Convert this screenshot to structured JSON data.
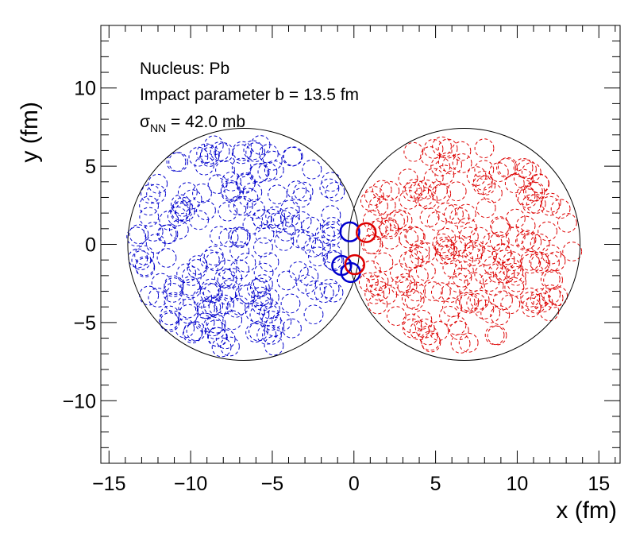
{
  "chart_data": {
    "type": "scatter",
    "xlabel": "x (fm)",
    "ylabel": "y (fm)",
    "xlim": [
      -15.5,
      16.3
    ],
    "ylim": [
      -14.0,
      14.0
    ],
    "xticks": [
      -15,
      -10,
      -5,
      0,
      5,
      10,
      15
    ],
    "xtick_labels": [
      "−15",
      "−10",
      "−5",
      "0",
      "5",
      "10",
      "15"
    ],
    "yticks": [
      -10,
      -5,
      0,
      5,
      10
    ],
    "ytick_labels": [
      "−10",
      "−5",
      "0",
      "5",
      "10"
    ],
    "annotations": {
      "nucleus": "Nucleus: Pb",
      "impact": "Impact parameter b = 13.5 fm",
      "sigma_symbol": "σ",
      "sigma_sub": "NN",
      "sigma_value": " = 42.0 mb"
    },
    "nuclei": [
      {
        "cx": -6.75,
        "cy": 0,
        "r": 7.1,
        "color": "#000000"
      },
      {
        "cx": 6.75,
        "cy": 0,
        "r": 7.1,
        "color": "#000000"
      }
    ],
    "nucleon_radius": 0.58,
    "colors": {
      "nucleus_a": "#0000cc",
      "nucleus_b": "#dd0000"
    },
    "participants": [
      {
        "x": -0.25,
        "y": 0.8,
        "nucleus": "a"
      },
      {
        "x": -0.75,
        "y": -1.35,
        "nucleus": "a"
      },
      {
        "x": -0.2,
        "y": -1.8,
        "nucleus": "a"
      },
      {
        "x": 0.75,
        "y": 0.75,
        "nucleus": "b"
      },
      {
        "x": 0.05,
        "y": -1.3,
        "nucleus": "b"
      }
    ],
    "spectator_count_per_nucleus": 200
  }
}
